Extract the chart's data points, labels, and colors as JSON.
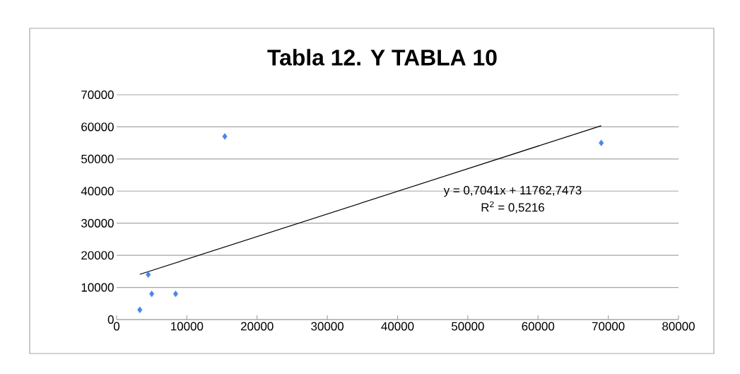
{
  "chart_data": {
    "type": "scatter",
    "title": "Tabla 12.  Y TABLA 10",
    "series": [
      {
        "color": "#4a86e8",
        "marker": "diamond",
        "x": [
          3300,
          4500,
          5000,
          8400,
          15400,
          69000
        ],
        "values": [
          3000,
          14000,
          8000,
          8000,
          57000,
          55000
        ]
      },
      {
        "type": "line",
        "color": "#000000",
        "marker": "none",
        "x": [
          3300,
          69000
        ],
        "values": [
          14086,
          60346
        ]
      }
    ],
    "annotations": [
      "y = 0,7041x + 11762,7473",
      "R$^{2}$ = 0,5216"
    ],
    "xlim": [
      0,
      80000
    ],
    "xticks": [
      0,
      10000,
      20000,
      30000,
      40000,
      50000,
      60000,
      70000,
      80000
    ],
    "ylim": [
      0,
      70000
    ],
    "yticks": [
      0,
      10000,
      20000,
      30000,
      40000,
      50000,
      60000,
      70000
    ],
    "grid": "y"
  }
}
